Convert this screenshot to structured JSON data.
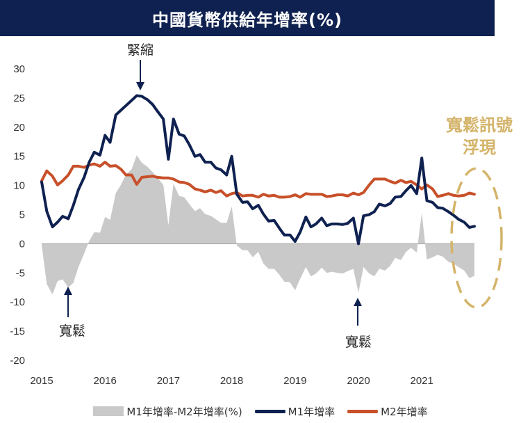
{
  "title": "中國貨幣供給年增率(%)",
  "colors": {
    "title_bg": "#0f2150",
    "m1": "#0f2150",
    "m2": "#c8502a",
    "diff": "#c9c9c9",
    "highlight": "#d4b46a"
  },
  "annotations": {
    "tight": "緊縮",
    "loose_2015": "寬鬆",
    "loose_2020": "寬鬆",
    "signal_line1": "寬鬆訊號",
    "signal_line2": "浮現"
  },
  "legend": {
    "diff": "M1年增率-M2年增率(%)",
    "m1": "M1年增率",
    "m2": "M2年增率"
  },
  "chart_data": {
    "type": "line",
    "title": "中國貨幣供給年增率(%)",
    "xlabel": "",
    "ylabel": "",
    "x_ticks": [
      "2015",
      "2016",
      "2017",
      "2018",
      "2019",
      "2020",
      "2021"
    ],
    "y_ticks": [
      "30",
      "25",
      "20",
      "15",
      "10",
      "5",
      "0",
      "-5",
      "-10",
      "-15",
      "-20"
    ],
    "xlim": [
      2015.0,
      2021.9
    ],
    "ylim": [
      -20,
      30
    ],
    "grid": false,
    "legend_position": "bottom",
    "x": [
      2015.0,
      2015.08,
      2015.17,
      2015.25,
      2015.33,
      2015.42,
      2015.5,
      2015.58,
      2015.67,
      2015.75,
      2015.83,
      2015.92,
      2016.0,
      2016.08,
      2016.17,
      2016.25,
      2016.33,
      2016.42,
      2016.5,
      2016.58,
      2016.67,
      2016.75,
      2016.83,
      2016.92,
      2017.0,
      2017.08,
      2017.17,
      2017.25,
      2017.33,
      2017.42,
      2017.5,
      2017.58,
      2017.67,
      2017.75,
      2017.83,
      2017.92,
      2018.0,
      2018.08,
      2018.17,
      2018.25,
      2018.33,
      2018.42,
      2018.5,
      2018.58,
      2018.67,
      2018.75,
      2018.83,
      2018.92,
      2019.0,
      2019.08,
      2019.17,
      2019.25,
      2019.33,
      2019.42,
      2019.5,
      2019.58,
      2019.67,
      2019.75,
      2019.83,
      2019.92,
      2020.0,
      2020.08,
      2020.17,
      2020.25,
      2020.33,
      2020.42,
      2020.5,
      2020.58,
      2020.67,
      2020.75,
      2020.83,
      2020.92,
      2021.0,
      2021.08,
      2021.17,
      2021.25,
      2021.33,
      2021.42,
      2021.5,
      2021.58,
      2021.67,
      2021.75,
      2021.83
    ],
    "series": [
      {
        "name": "M1年增率",
        "values": [
          10.6,
          5.6,
          2.9,
          3.7,
          4.7,
          4.3,
          6.6,
          9.3,
          11.4,
          14.0,
          15.7,
          15.2,
          18.6,
          17.4,
          22.1,
          22.9,
          23.7,
          24.6,
          25.4,
          25.3,
          24.7,
          23.9,
          22.7,
          21.4,
          14.5,
          21.4,
          18.8,
          18.5,
          17.0,
          15.0,
          15.3,
          14.0,
          14.0,
          13.0,
          12.7,
          11.8,
          15.0,
          8.5,
          7.1,
          7.2,
          6.0,
          6.6,
          5.1,
          3.9,
          4.0,
          2.7,
          1.5,
          1.5,
          0.4,
          2.0,
          4.6,
          2.9,
          3.4,
          4.4,
          3.1,
          3.4,
          3.4,
          3.3,
          3.5,
          4.4,
          0.0,
          4.8,
          5.0,
          5.5,
          6.8,
          6.5,
          6.9,
          8.0,
          8.1,
          9.1,
          10.0,
          8.6,
          14.7,
          7.4,
          7.1,
          6.2,
          6.1,
          5.5,
          4.9,
          4.2,
          3.7,
          2.8,
          3.0
        ]
      },
      {
        "name": "M2年增率",
        "values": [
          10.8,
          12.5,
          11.6,
          10.1,
          10.8,
          11.8,
          13.3,
          13.3,
          13.1,
          13.5,
          13.7,
          13.3,
          14.0,
          13.3,
          13.4,
          12.8,
          11.8,
          11.8,
          10.2,
          11.4,
          11.5,
          11.6,
          11.4,
          11.3,
          11.3,
          11.1,
          10.6,
          10.5,
          10.2,
          9.4,
          9.2,
          8.9,
          9.2,
          8.8,
          9.1,
          8.2,
          8.6,
          8.8,
          8.2,
          8.3,
          8.3,
          8.0,
          8.5,
          8.2,
          8.3,
          8.0,
          8.0,
          8.1,
          8.4,
          8.0,
          8.6,
          8.5,
          8.5,
          8.5,
          8.1,
          8.2,
          8.4,
          8.4,
          8.2,
          8.7,
          8.4,
          8.8,
          10.1,
          11.1,
          11.1,
          11.1,
          10.7,
          10.4,
          10.9,
          10.5,
          10.7,
          10.1,
          9.4,
          10.1,
          9.4,
          8.1,
          8.3,
          8.6,
          8.3,
          8.2,
          8.3,
          8.7,
          8.5
        ]
      }
    ],
    "diff_area": {
      "name": "M1年增率-M2年增率(%)",
      "values": "m1_minus_m2"
    }
  }
}
